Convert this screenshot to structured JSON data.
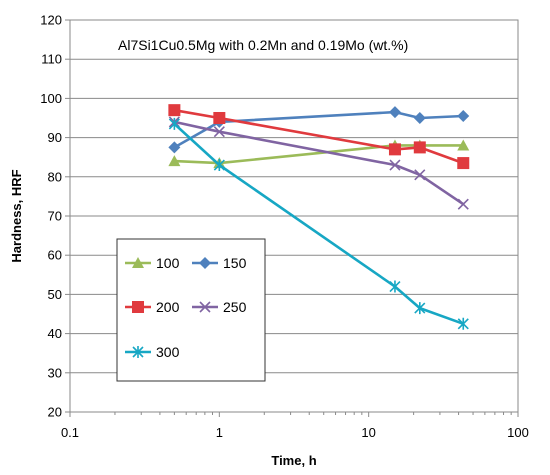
{
  "chart_data": {
    "type": "line",
    "title": "Al7Si1Cu0.5Mg  with 0.2Mn and 0.19Mo (wt.%)",
    "xlabel": "Time, h",
    "ylabel": "Hardness, HRF",
    "xscale": "log",
    "xlim": [
      0.1,
      100
    ],
    "ylim": [
      20,
      120
    ],
    "x_ticks": [
      0.1,
      1,
      10,
      100
    ],
    "x_tick_labels": [
      "0.1",
      "1",
      "10",
      "100"
    ],
    "y_ticks": [
      20,
      30,
      40,
      50,
      60,
      70,
      80,
      90,
      100,
      110,
      120
    ],
    "y_tick_labels": [
      "20",
      "30",
      "40",
      "50",
      "60",
      "70",
      "80",
      "90",
      "100",
      "110",
      "120"
    ],
    "grid": "horizontal",
    "legend_position": "left-center",
    "series": [
      {
        "name": "100",
        "color": "#9BBB59",
        "marker": "triangle",
        "x": [
          0.5,
          1,
          15,
          22,
          43
        ],
        "values": [
          84,
          83.5,
          88,
          88,
          88
        ]
      },
      {
        "name": "150",
        "color": "#4F81BD",
        "marker": "diamond",
        "x": [
          0.5,
          1,
          15,
          22,
          43
        ],
        "values": [
          87.5,
          94,
          96.5,
          95,
          95.5
        ]
      },
      {
        "name": "200",
        "color": "#E03A3E",
        "marker": "square",
        "x": [
          0.5,
          1,
          15,
          22,
          43
        ],
        "values": [
          97,
          95,
          87,
          87.5,
          83.5
        ]
      },
      {
        "name": "250",
        "color": "#8064A2",
        "marker": "x",
        "x": [
          0.5,
          1,
          15,
          22,
          43
        ],
        "values": [
          94,
          91.5,
          83,
          80.5,
          73
        ]
      },
      {
        "name": "300",
        "color": "#17A7C4",
        "marker": "asterisk",
        "x": [
          0.5,
          1,
          15,
          22,
          43
        ],
        "values": [
          93.5,
          83,
          52,
          46.5,
          42.5
        ]
      }
    ]
  }
}
